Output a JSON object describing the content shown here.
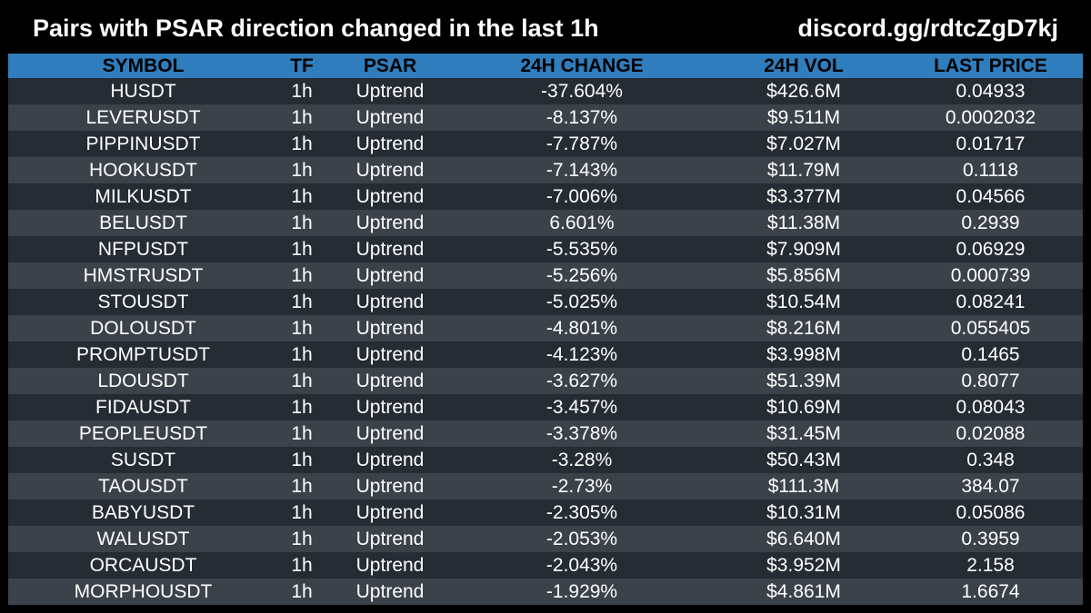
{
  "header": {
    "title": "Pairs with PSAR direction changed in the last 1h",
    "discord": "discord.gg/rdtcZgD7kj"
  },
  "table": {
    "columns": [
      "SYMBOL",
      "TF",
      "PSAR",
      "24H CHANGE",
      "24H VOL",
      "LAST PRICE"
    ],
    "rows": [
      [
        "HUSDT",
        "1h",
        "Uptrend",
        "-37.604%",
        "$426.6M",
        "0.04933"
      ],
      [
        "LEVERUSDT",
        "1h",
        "Uptrend",
        "-8.137%",
        "$9.511M",
        "0.0002032"
      ],
      [
        "PIPPINUSDT",
        "1h",
        "Uptrend",
        "-7.787%",
        "$7.027M",
        "0.01717"
      ],
      [
        "HOOKUSDT",
        "1h",
        "Uptrend",
        "-7.143%",
        "$11.79M",
        "0.1118"
      ],
      [
        "MILKUSDT",
        "1h",
        "Uptrend",
        "-7.006%",
        "$3.377M",
        "0.04566"
      ],
      [
        "BELUSDT",
        "1h",
        "Uptrend",
        "6.601%",
        "$11.38M",
        "0.2939"
      ],
      [
        "NFPUSDT",
        "1h",
        "Uptrend",
        "-5.535%",
        "$7.909M",
        "0.06929"
      ],
      [
        "HMSTRUSDT",
        "1h",
        "Uptrend",
        "-5.256%",
        "$5.856M",
        "0.000739"
      ],
      [
        "STOUSDT",
        "1h",
        "Uptrend",
        "-5.025%",
        "$10.54M",
        "0.08241"
      ],
      [
        "DOLOUSDT",
        "1h",
        "Uptrend",
        "-4.801%",
        "$8.216M",
        "0.055405"
      ],
      [
        "PROMPTUSDT",
        "1h",
        "Uptrend",
        "-4.123%",
        "$3.998M",
        "0.1465"
      ],
      [
        "LDOUSDT",
        "1h",
        "Uptrend",
        "-3.627%",
        "$51.39M",
        "0.8077"
      ],
      [
        "FIDAUSDT",
        "1h",
        "Uptrend",
        "-3.457%",
        "$10.69M",
        "0.08043"
      ],
      [
        "PEOPLEUSDT",
        "1h",
        "Uptrend",
        "-3.378%",
        "$31.45M",
        "0.02088"
      ],
      [
        "SUSDT",
        "1h",
        "Uptrend",
        "-3.28%",
        "$50.43M",
        "0.348"
      ],
      [
        "TAOUSDT",
        "1h",
        "Uptrend",
        "-2.73%",
        "$111.3M",
        "384.07"
      ],
      [
        "BABYUSDT",
        "1h",
        "Uptrend",
        "-2.305%",
        "$10.31M",
        "0.05086"
      ],
      [
        "WALUSDT",
        "1h",
        "Uptrend",
        "-2.053%",
        "$6.640M",
        "0.3959"
      ],
      [
        "ORCAUSDT",
        "1h",
        "Uptrend",
        "-2.043%",
        "$3.952M",
        "2.158"
      ],
      [
        "MORPHOUSDT",
        "1h",
        "Uptrend",
        "-1.929%",
        "$4.861M",
        "1.6674"
      ]
    ]
  },
  "colors": {
    "background": "#000000",
    "header_row": "#2f7dbd",
    "row_dark": "#252c33",
    "row_light": "#3b4249",
    "text": "#ffffff"
  }
}
